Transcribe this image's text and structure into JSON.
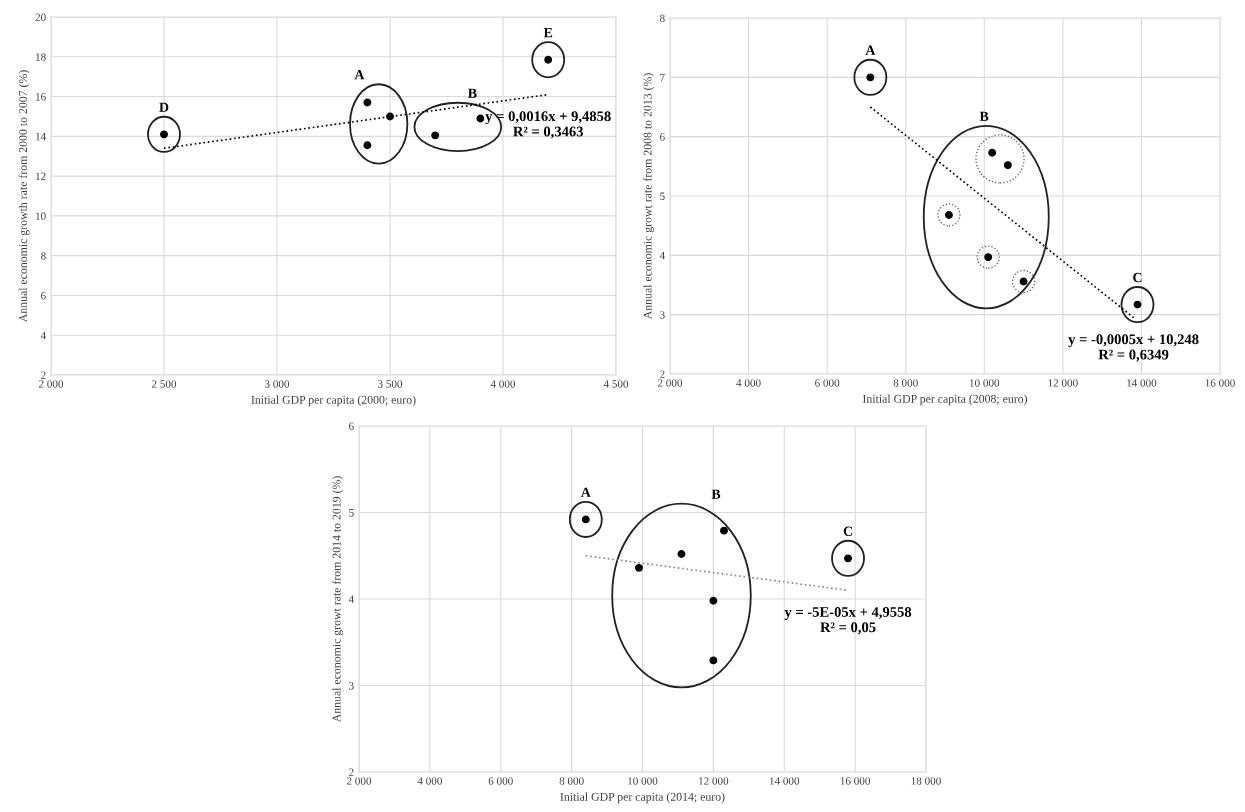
{
  "chart_data": [
    {
      "type": "scatter",
      "xlabel": "Initial GDP per capita (2000; euro)",
      "ylabel": "Annual economic growth rate from 2000 to 2007 (%)",
      "xlim": [
        2000,
        4500
      ],
      "xticks": [
        {
          "value": 2000,
          "label": "2 000"
        },
        {
          "value": 2500,
          "label": "2 500"
        },
        {
          "value": 3000,
          "label": "3 000"
        },
        {
          "value": 3500,
          "label": "3 500"
        },
        {
          "value": 4000,
          "label": "4 000"
        },
        {
          "value": 4500,
          "label": "4 500"
        }
      ],
      "ylim": [
        2,
        20
      ],
      "yticks": [
        2,
        4,
        6,
        8,
        10,
        12,
        14,
        16,
        18,
        20
      ],
      "grid": true,
      "marker": "circle",
      "series": [
        {
          "name": "D",
          "color": "#000000",
          "x": [
            2500
          ],
          "values": [
            14.1
          ]
        },
        {
          "name": "A",
          "color": "#000000",
          "x": [
            3400,
            3500,
            3400
          ],
          "values": [
            15.7,
            15.0,
            13.55
          ]
        },
        {
          "name": "B",
          "color": "#000000",
          "x": [
            3700,
            3900
          ],
          "values": [
            14.05,
            14.9
          ]
        },
        {
          "name": "E",
          "color": "#000000",
          "x": [
            4200
          ],
          "values": [
            17.85
          ]
        },
        {
          "type": "line",
          "color": "#000000",
          "line_style": "dotted",
          "marker": "none",
          "x": [
            2500,
            4200
          ],
          "values": [
            13.4,
            16.1
          ]
        }
      ],
      "annotations": [
        "y = 0,0016x + 9,4858\nR² = 0,3463"
      ]
    },
    {
      "type": "scatter",
      "xlabel": "Initial GDP per capita (2008; euro)",
      "ylabel": "Annual economic growt rate from 2008 to 2013 (%)",
      "xlim": [
        2000,
        16000
      ],
      "xticks": [
        {
          "value": 2000,
          "label": "2 000"
        },
        {
          "value": 4000,
          "label": "4 000"
        },
        {
          "value": 6000,
          "label": "6 000"
        },
        {
          "value": 8000,
          "label": "8 000"
        },
        {
          "value": 10000,
          "label": "10 000"
        },
        {
          "value": 12000,
          "label": "12 000"
        },
        {
          "value": 14000,
          "label": "14 000"
        },
        {
          "value": 16000,
          "label": "16 000"
        }
      ],
      "ylim": [
        2,
        8
      ],
      "yticks": [
        2,
        3,
        4,
        5,
        6,
        7,
        8
      ],
      "grid": true,
      "marker": "circle",
      "series": [
        {
          "name": "A",
          "color": "#000000",
          "x": [
            7100
          ],
          "values": [
            7.0
          ]
        },
        {
          "name": "B",
          "color": "#000000",
          "x": [
            10200,
            10600,
            9100,
            10100,
            11000
          ],
          "values": [
            5.73,
            5.52,
            4.68,
            3.97,
            3.56
          ]
        },
        {
          "name": "C",
          "color": "#000000",
          "x": [
            13900
          ],
          "values": [
            3.17
          ]
        },
        {
          "type": "line",
          "color": "#000000",
          "line_style": "dotted",
          "marker": "none",
          "x": [
            7100,
            13800
          ],
          "values": [
            6.5,
            2.95
          ]
        }
      ],
      "annotations": [
        "y = -0,0005x + 10,248\nR² = 0,6349"
      ]
    },
    {
      "type": "scatter",
      "xlabel": "Initial GDP per capita (2014; euro)",
      "ylabel": "Annual economic growt rate from 2014 to 2019 (%)",
      "xlim": [
        2000,
        18000
      ],
      "xticks": [
        {
          "value": 2000,
          "label": "2 000"
        },
        {
          "value": 4000,
          "label": "4 000"
        },
        {
          "value": 6000,
          "label": "6 000"
        },
        {
          "value": 8000,
          "label": "8 000"
        },
        {
          "value": 10000,
          "label": "10 000"
        },
        {
          "value": 12000,
          "label": "12 000"
        },
        {
          "value": 14000,
          "label": "14 000"
        },
        {
          "value": 16000,
          "label": "16 000"
        },
        {
          "value": 18000,
          "label": "18 000"
        }
      ],
      "ylim": [
        2,
        6
      ],
      "yticks": [
        2,
        3,
        4,
        5,
        6
      ],
      "grid": true,
      "marker": "circle",
      "series": [
        {
          "name": "A",
          "color": "#000000",
          "x": [
            8400
          ],
          "values": [
            4.92
          ]
        },
        {
          "name": "B",
          "color": "#000000",
          "x": [
            9900,
            11100,
            12300,
            12000,
            12000
          ],
          "values": [
            4.36,
            4.52,
            4.79,
            3.98,
            3.29
          ]
        },
        {
          "name": "C",
          "color": "#000000",
          "x": [
            15800
          ],
          "values": [
            4.47
          ]
        },
        {
          "type": "line",
          "color": "#888888",
          "line_style": "dotted",
          "marker": "none",
          "x": [
            8400,
            15800
          ],
          "values": [
            4.5,
            4.1
          ]
        }
      ],
      "annotations": [
        "y = -5E-05x + 4,9558\nR² = 0,05"
      ]
    }
  ]
}
